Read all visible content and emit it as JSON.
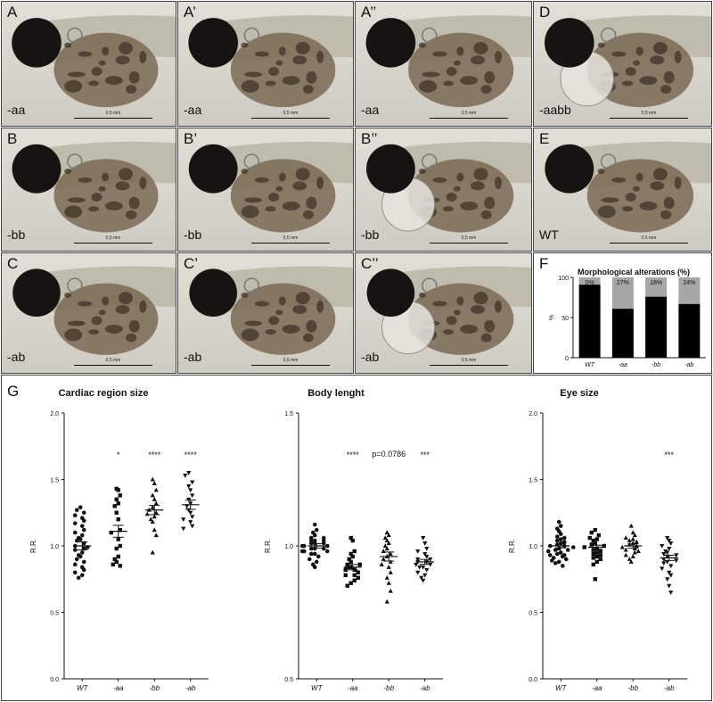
{
  "panels": [
    {
      "id": "A",
      "label": "A",
      "genotype": "-aa",
      "scale": "0,5 mm",
      "variant": "normal"
    },
    {
      "id": "A1",
      "label": "A’",
      "genotype": "-aa",
      "scale": "0,5 mm",
      "variant": "normal"
    },
    {
      "id": "A2",
      "label": "A’’",
      "genotype": "-aa",
      "scale": "0,5 mm",
      "variant": "normal"
    },
    {
      "id": "D",
      "label": "D",
      "genotype": "-aabb",
      "scale": "0,5 mm",
      "variant": "edema"
    },
    {
      "id": "B",
      "label": "B",
      "genotype": "-bb",
      "scale": "0,5 mm",
      "variant": "normal"
    },
    {
      "id": "B1",
      "label": "B’",
      "genotype": "-bb",
      "scale": "0,5 mm",
      "variant": "normal"
    },
    {
      "id": "B2",
      "label": "B’’",
      "genotype": "-bb",
      "scale": "0,5 mm",
      "variant": "edema"
    },
    {
      "id": "E",
      "label": "E",
      "genotype": "WT",
      "scale": "0,5 mm",
      "variant": "normal"
    },
    {
      "id": "C",
      "label": "C",
      "genotype": "-ab",
      "scale": "0,5 mm",
      "variant": "normal"
    },
    {
      "id": "C1",
      "label": "C’",
      "genotype": "-ab",
      "scale": "0,5 mm",
      "variant": "normal"
    },
    {
      "id": "C2",
      "label": "C’’",
      "genotype": "-ab",
      "scale": "0,5 mm",
      "variant": "edema"
    }
  ],
  "panelF": {
    "label": "F"
  },
  "panelG": {
    "label": "G"
  },
  "chart_data": [
    {
      "type": "bar",
      "title": "Morphological alterations (%)",
      "ylabel": "%",
      "ylim": [
        0,
        100
      ],
      "yticks": [
        0,
        50,
        100
      ],
      "categories": [
        "WT",
        "-aa",
        "-bb",
        "-ab"
      ],
      "stacked": true,
      "series": [
        {
          "values": [
            91,
            61,
            76,
            67
          ],
          "color": "#000000"
        },
        {
          "values": [
            9,
            39,
            24,
            33
          ],
          "color": "#a6a6a6"
        }
      ],
      "bar_labels": [
        "0%",
        "27%",
        "18%",
        "24%"
      ]
    },
    {
      "type": "scatter",
      "title": "Cardiac region size",
      "ylabel": "R.R.",
      "ylim": [
        0,
        2
      ],
      "yticks": [
        "0.0",
        "0.5",
        "1.0",
        "1.5",
        "2.0"
      ],
      "categories": [
        "WT",
        "-aa",
        "-bb",
        "-ab"
      ],
      "markers": [
        "circle",
        "square",
        "triangle",
        "triangle-down"
      ],
      "significance": [
        "",
        "*",
        "****",
        "****"
      ],
      "means": [
        1.0,
        1.11,
        1.27,
        1.31
      ],
      "sem": [
        0.03,
        0.045,
        0.035,
        0.035
      ],
      "points": [
        [
          1.29,
          1.27,
          1.25,
          1.23,
          1.21,
          1.19,
          1.17,
          1.15,
          1.12,
          1.1,
          1.08,
          1.06,
          1.04,
          1.02,
          1.0,
          0.99,
          0.97,
          0.95,
          0.93,
          0.92,
          0.9,
          0.88,
          0.86,
          0.84,
          0.82,
          0.8,
          0.78,
          0.76,
          1.05,
          0.98
        ],
        [
          1.43,
          1.42,
          1.38,
          1.35,
          1.32,
          1.3,
          1.25,
          1.2,
          1.12,
          1.1,
          1.05,
          1.0,
          0.98,
          0.92,
          0.9,
          0.88,
          0.86,
          0.85
        ],
        [
          1.5,
          1.47,
          1.42,
          1.38,
          1.35,
          1.32,
          1.29,
          1.27,
          1.25,
          1.24,
          1.22,
          1.2,
          1.18,
          1.12,
          1.08,
          0.95
        ],
        [
          1.55,
          1.53,
          1.48,
          1.45,
          1.42,
          1.38,
          1.35,
          1.32,
          1.3,
          1.27,
          1.25,
          1.22,
          1.2,
          1.18,
          1.15,
          1.13
        ]
      ]
    },
    {
      "type": "scatter",
      "title": "Body lenght",
      "ylabel": "R.R.",
      "ylim": [
        0.5,
        1.5
      ],
      "yticks": [
        "0.5",
        "1.0",
        "1.5"
      ],
      "categories": [
        "WT",
        "-aa",
        "-bb",
        "-ab"
      ],
      "markers": [
        "circle",
        "square",
        "triangle",
        "triangle-down"
      ],
      "significance": [
        "",
        "****",
        "p=0.0786",
        "***"
      ],
      "means": [
        1.0,
        0.92,
        0.96,
        0.94
      ],
      "sem": [
        0.008,
        0.01,
        0.017,
        0.009
      ],
      "points": [
        [
          1.08,
          1.06,
          1.05,
          1.04,
          1.03,
          1.03,
          1.02,
          1.02,
          1.01,
          1.01,
          1.0,
          1.0,
          1.0,
          0.99,
          0.99,
          0.98,
          0.98,
          0.97,
          0.97,
          0.96,
          0.95,
          0.94,
          0.93,
          0.92,
          1.01,
          0.99,
          0.98,
          1.02
        ],
        [
          1.03,
          1.02,
          0.98,
          0.97,
          0.96,
          0.95,
          0.94,
          0.93,
          0.93,
          0.92,
          0.92,
          0.91,
          0.91,
          0.9,
          0.89,
          0.89,
          0.88,
          0.87,
          0.86,
          0.85
        ],
        [
          1.05,
          1.04,
          1.03,
          1.02,
          1.01,
          1.0,
          0.99,
          0.98,
          0.97,
          0.96,
          0.95,
          0.94,
          0.93,
          0.92,
          0.9,
          0.88,
          0.86,
          0.83,
          0.79
        ],
        [
          1.03,
          1.01,
          0.99,
          0.98,
          0.97,
          0.96,
          0.95,
          0.95,
          0.94,
          0.94,
          0.93,
          0.93,
          0.92,
          0.92,
          0.91,
          0.9,
          0.89,
          0.88,
          0.87
        ]
      ]
    },
    {
      "type": "scatter",
      "title": "Eye size",
      "ylabel": "R.R.",
      "ylim": [
        0,
        2
      ],
      "yticks": [
        "0.0",
        "0.5",
        "1.0",
        "1.5",
        "2.0"
      ],
      "categories": [
        "WT",
        "-aa",
        "-bb",
        "-ab"
      ],
      "markers": [
        "circle",
        "square",
        "triangle",
        "triangle-down"
      ],
      "significance": [
        "",
        "",
        "",
        "***"
      ],
      "means": [
        1.0,
        0.99,
        1.0,
        0.91
      ],
      "sem": [
        0.015,
        0.015,
        0.016,
        0.02
      ],
      "points": [
        [
          1.18,
          1.15,
          1.13,
          1.11,
          1.09,
          1.07,
          1.05,
          1.04,
          1.03,
          1.02,
          1.01,
          1.0,
          0.99,
          0.98,
          0.97,
          0.96,
          0.95,
          0.94,
          0.93,
          0.92,
          0.91,
          0.9,
          0.88,
          0.87,
          0.85,
          1.06,
          1.0,
          0.97,
          0.93,
          0.89
        ],
        [
          1.12,
          1.1,
          1.08,
          1.06,
          1.05,
          1.04,
          1.02,
          1.01,
          1.0,
          0.99,
          0.98,
          0.97,
          0.96,
          0.95,
          0.94,
          0.93,
          0.92,
          0.91,
          0.9,
          0.88,
          0.86,
          0.75
        ],
        [
          1.15,
          1.1,
          1.08,
          1.06,
          1.05,
          1.04,
          1.03,
          1.02,
          1.01,
          1.0,
          0.99,
          0.98,
          0.97,
          0.96,
          0.95,
          0.93,
          0.92,
          0.9,
          0.88
        ],
        [
          1.06,
          1.04,
          1.02,
          1.0,
          0.98,
          0.96,
          0.95,
          0.94,
          0.93,
          0.92,
          0.9,
          0.89,
          0.88,
          0.87,
          0.85,
          0.83,
          0.8,
          0.78,
          0.75,
          0.7,
          0.65
        ]
      ]
    }
  ]
}
